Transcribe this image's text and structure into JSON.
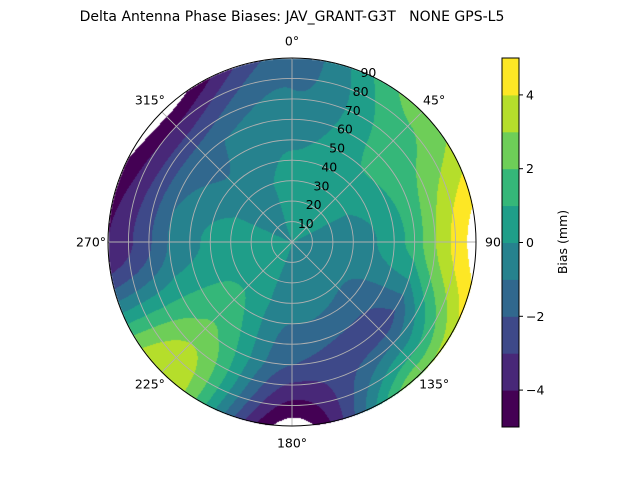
{
  "chart_data": {
    "type": "heatmap",
    "subtype": "polar-filled-contour",
    "title": "Delta Antenna Phase Biases: JAV_GRANT-G3T   NONE GPS-L5",
    "angular_ticks": [
      "0°",
      "45°",
      "90",
      "135°",
      "180°",
      "225°",
      "270°",
      "315°"
    ],
    "angular_tick_values": [
      0,
      45,
      90,
      135,
      180,
      225,
      270,
      315
    ],
    "angular_direction": "clockwise",
    "angular_zero": "top",
    "radial_ticks": [
      "10",
      "20",
      "30",
      "40",
      "50",
      "60",
      "70",
      "80",
      "90"
    ],
    "radial_tick_values": [
      10,
      20,
      30,
      40,
      50,
      60,
      70,
      80,
      90
    ],
    "rlim": [
      0,
      90
    ],
    "grid": true,
    "colorbar": {
      "label": "Bias (mm)",
      "levels": [
        -5,
        -4,
        -3,
        -2,
        -1,
        0,
        1,
        2,
        3,
        4,
        5
      ],
      "ticks": [
        "4",
        "2",
        "0",
        "−2",
        "−4"
      ],
      "tick_values": [
        4,
        2,
        0,
        -2,
        -4
      ],
      "colormap": "viridis",
      "band_colors": [
        "#440154",
        "#482878",
        "#3e4989",
        "#31688e",
        "#26828e",
        "#1f9e89",
        "#35b779",
        "#6ece58",
        "#b5de2b",
        "#fde725"
      ],
      "out_of_range_color": "#ffffff"
    },
    "approx_field": {
      "azimuth": [
        0,
        45,
        90,
        135,
        180,
        225,
        270,
        315
      ],
      "radius": [
        0,
        30,
        60,
        90
      ],
      "bias_mm": [
        [
          0,
          0.5,
          -0.5,
          -1.5
        ],
        [
          0,
          0.3,
          1.5,
          2.5
        ],
        [
          0,
          -0.5,
          1.0,
          5.5
        ],
        [
          0,
          -1.0,
          -2.5,
          3.0
        ],
        [
          0,
          -0.5,
          -2.0,
          -5.5
        ],
        [
          0,
          1.0,
          2.0,
          4.0
        ],
        [
          0,
          0.5,
          -0.5,
          -4.0
        ],
        [
          0,
          -0.5,
          -1.5,
          -5.5
        ]
      ]
    }
  }
}
